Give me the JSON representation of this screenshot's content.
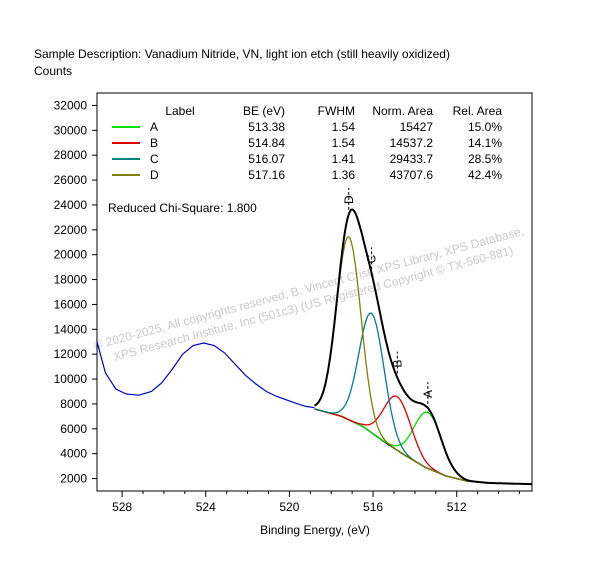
{
  "chart_data": {
    "type": "line",
    "title": "Sample Description:  Vanadium Nitride, VN, light ion etch (still heavily oxidized)",
    "ylabel": "Counts",
    "xlabel": "Binding Energy, (eV)",
    "x_reversed": true,
    "xlim": [
      529.2,
      508.4
    ],
    "ylim": [
      1000,
      33000
    ],
    "x_ticks": [
      "528",
      "524",
      "520",
      "516",
      "512"
    ],
    "x_tick_values": [
      528,
      524,
      520,
      516,
      512
    ],
    "y_ticks": [
      "2000",
      "4000",
      "6000",
      "8000",
      "10000",
      "12000",
      "14000",
      "16000",
      "18000",
      "20000",
      "22000",
      "24000",
      "26000",
      "28000",
      "30000",
      "32000"
    ],
    "y_tick_values": [
      2000,
      4000,
      6000,
      8000,
      10000,
      12000,
      14000,
      16000,
      18000,
      20000,
      22000,
      24000,
      26000,
      28000,
      30000,
      32000
    ],
    "grid": false,
    "legend": {
      "placement": "top-left",
      "headers": [
        "Label",
        "BE (eV)",
        "FWHM",
        "Norm. Area",
        "Rel. Area"
      ],
      "rows": [
        {
          "label": "A",
          "be": "513.38",
          "fwhm": "1.54",
          "norm_area": "15427",
          "rel_area": "15.0%",
          "color": "#00e000"
        },
        {
          "label": "B",
          "be": "514.84",
          "fwhm": "1.54",
          "norm_area": "14537.2",
          "rel_area": "14.1%",
          "color": "#e00000"
        },
        {
          "label": "C",
          "be": "516.07",
          "fwhm": "1.41",
          "norm_area": "29433.7",
          "rel_area": "28.5%",
          "color": "#008080"
        },
        {
          "label": "D",
          "be": "517.16",
          "fwhm": "1.36",
          "norm_area": "43707.6",
          "rel_area": "42.4%",
          "color": "#808000"
        }
      ]
    },
    "chi_square": "Reduced Chi-Square: 1.800",
    "peaks": [
      {
        "label": "A",
        "be": 513.38,
        "fwhm": 1.54,
        "height": 4500,
        "color": "#00e000"
      },
      {
        "label": "B",
        "be": 514.84,
        "fwhm": 1.54,
        "height": 4300,
        "color": "#e00000"
      },
      {
        "label": "C",
        "be": 516.07,
        "fwhm": 1.41,
        "height": 9600,
        "color": "#008080"
      },
      {
        "label": "D",
        "be": 517.16,
        "fwhm": 1.36,
        "height": 14700,
        "color": "#808000"
      }
    ],
    "background_points": [
      [
        518.8,
        7600
      ],
      [
        517.5,
        7000
      ],
      [
        516.5,
        6200
      ],
      [
        515.5,
        5000
      ],
      [
        514.5,
        3900
      ],
      [
        513.5,
        2900
      ],
      [
        512.5,
        2200
      ],
      [
        511.5,
        1800
      ],
      [
        510.5,
        1650
      ],
      [
        509.5,
        1600
      ],
      [
        508.4,
        1550
      ]
    ],
    "raw_left_points": [
      [
        529.2,
        13000
      ],
      [
        528.8,
        10500
      ],
      [
        528.3,
        9200
      ],
      [
        527.8,
        8800
      ],
      [
        527.2,
        8700
      ],
      [
        526.6,
        9000
      ],
      [
        526.1,
        9700
      ],
      [
        525.6,
        10800
      ],
      [
        525.1,
        12000
      ],
      [
        524.6,
        12700
      ],
      [
        524.1,
        12900
      ],
      [
        523.6,
        12700
      ],
      [
        523.1,
        12100
      ],
      [
        522.6,
        11200
      ],
      [
        522.1,
        10300
      ],
      [
        521.6,
        9600
      ],
      [
        521.1,
        9000
      ],
      [
        520.6,
        8600
      ],
      [
        520.1,
        8300
      ],
      [
        519.6,
        8000
      ],
      [
        519.2,
        7800
      ],
      [
        518.8,
        7700
      ]
    ],
    "composite_color": "#000000",
    "raw_color": "#0000cc",
    "background_color": "#000000"
  },
  "watermark": {
    "line1": "© 2020-2025,  All copyrights reserved,   B. Vincent Crist,  XPS Library, XPS Database,",
    "line2": "XPS Research Institute, Inc (501c3)   (US Registered Copyright © TX-560-881)"
  }
}
